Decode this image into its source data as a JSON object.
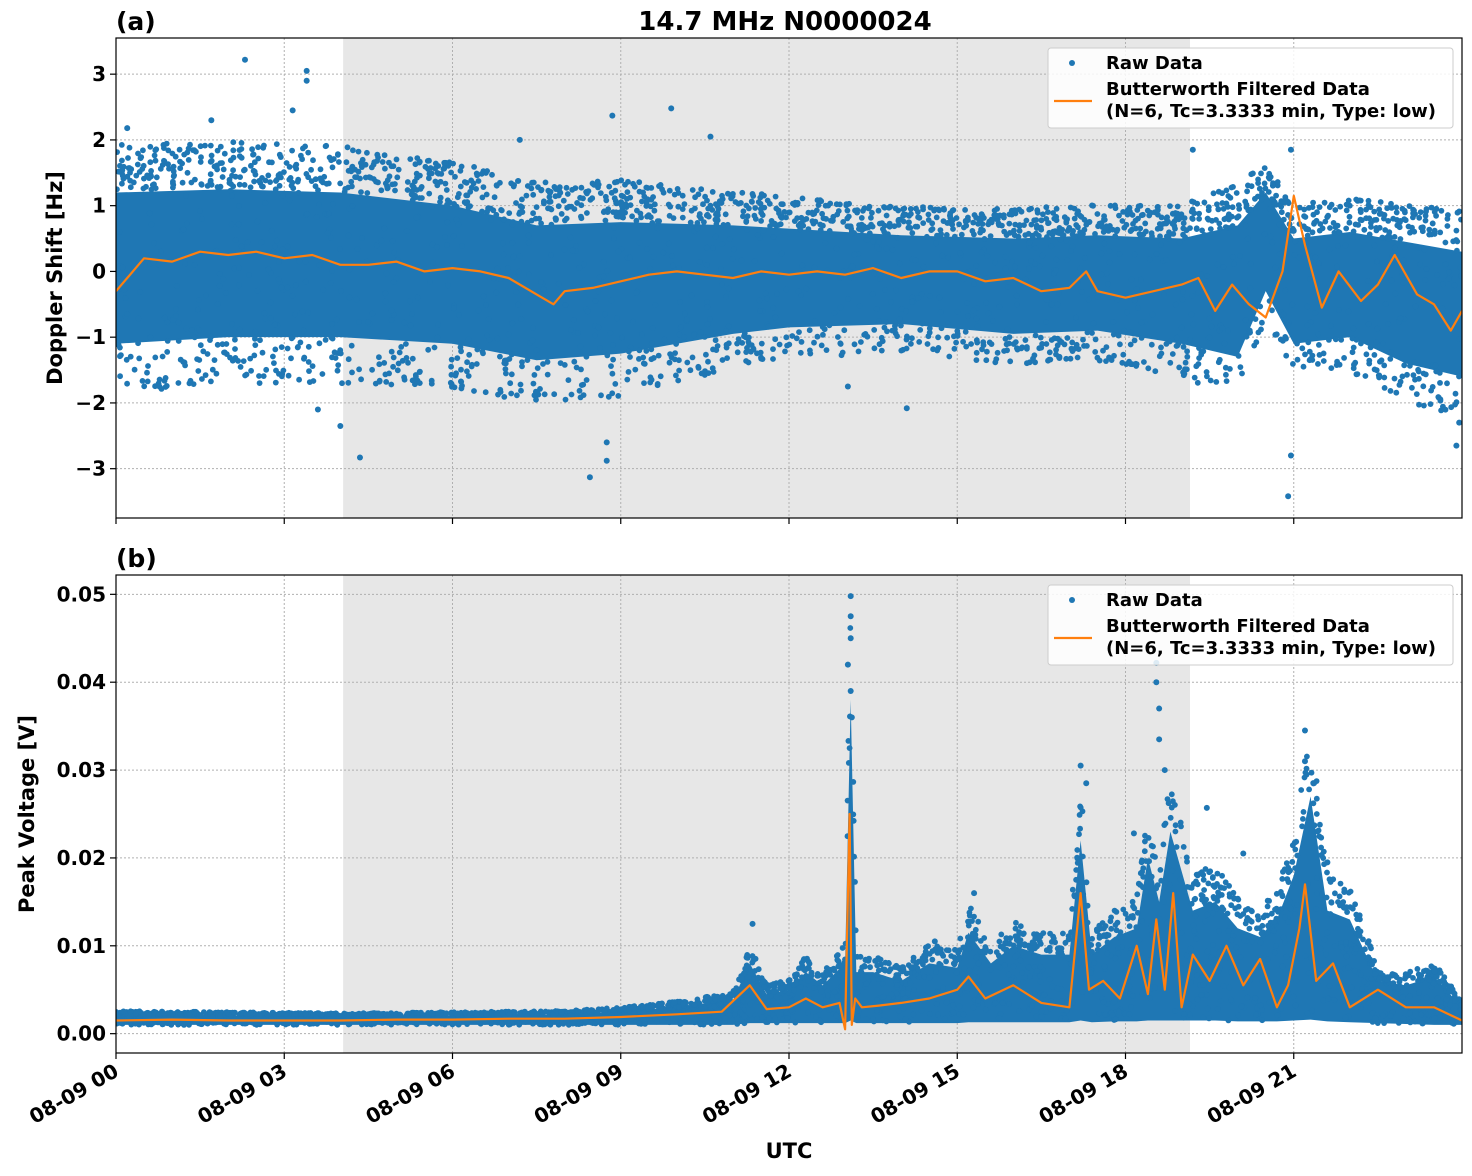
{
  "chart_data": [
    {
      "panel": "(a)",
      "type": "scatter",
      "title": "14.7 MHz N0000024",
      "xlabel": "",
      "ylabel": "Doppler Shift [Hz]",
      "x_unit": "hours since 08-09 00 UTC",
      "xlim": [
        0,
        24
      ],
      "ylim": [
        -3.75,
        3.55
      ],
      "yticks": [
        -3,
        -2,
        -1,
        0,
        1,
        2,
        3
      ],
      "ytick_labels": [
        "−3",
        "−2",
        "−1",
        "0",
        "1",
        "2",
        "3"
      ],
      "shaded_x_range": [
        4.05,
        19.15
      ],
      "grid": true,
      "legend_position": "top-right",
      "series": [
        {
          "name": "Raw Data",
          "kind": "scatter",
          "color": "#1f77b4",
          "band": {
            "x": [
              0,
              2,
              4,
              6,
              7.5,
              9,
              11,
              12,
              14,
              16,
              17.5,
              19,
              20,
              20.5,
              21,
              22,
              23,
              24
            ],
            "upper": [
              1.2,
              1.25,
              1.2,
              1.0,
              0.7,
              0.75,
              0.7,
              0.65,
              0.55,
              0.5,
              0.55,
              0.5,
              0.7,
              1.2,
              0.5,
              0.6,
              0.45,
              0.3
            ],
            "lower": [
              -1.1,
              -1.0,
              -1.0,
              -1.1,
              -1.35,
              -1.25,
              -0.95,
              -0.85,
              -0.8,
              -0.95,
              -0.9,
              -1.1,
              -1.3,
              -0.3,
              -1.1,
              -1.0,
              -1.4,
              -1.6
            ]
          },
          "outliers": [
            {
              "x": 2.3,
              "y": 3.22
            },
            {
              "x": 3.4,
              "y": 3.05
            },
            {
              "x": 3.4,
              "y": 2.9
            },
            {
              "x": 3.15,
              "y": 2.45
            },
            {
              "x": 9.9,
              "y": 2.48
            },
            {
              "x": 8.85,
              "y": 2.37
            },
            {
              "x": 10.6,
              "y": 2.05
            },
            {
              "x": 4.35,
              "y": -2.83
            },
            {
              "x": 8.45,
              "y": -3.13
            },
            {
              "x": 8.75,
              "y": -2.88
            },
            {
              "x": 8.75,
              "y": -2.6
            },
            {
              "x": 13.05,
              "y": -1.75
            },
            {
              "x": 14.1,
              "y": -2.08
            },
            {
              "x": 20.9,
              "y": -3.42
            },
            {
              "x": 20.95,
              "y": -2.8
            },
            {
              "x": 19.2,
              "y": 1.85
            },
            {
              "x": 20.95,
              "y": 1.85
            },
            {
              "x": 0.2,
              "y": 2.18
            },
            {
              "x": 1.7,
              "y": 2.3
            },
            {
              "x": 7.2,
              "y": 2.0
            },
            {
              "x": 23.9,
              "y": -2.65
            },
            {
              "x": 23.95,
              "y": -2.3
            },
            {
              "x": 4.0,
              "y": -2.35
            },
            {
              "x": 3.6,
              "y": -2.1
            }
          ]
        },
        {
          "name": "Butterworth Filtered Data\n(N=6, Tc=3.3333 min, Type: low)",
          "kind": "line",
          "color": "#ff7f0e",
          "x": [
            0,
            0.5,
            1,
            1.5,
            2,
            2.5,
            3,
            3.5,
            4,
            4.5,
            5,
            5.5,
            6,
            6.5,
            7,
            7.5,
            7.8,
            8,
            8.5,
            9,
            9.5,
            10,
            10.5,
            11,
            11.5,
            12,
            12.5,
            13,
            13.5,
            14,
            14.5,
            15,
            15.5,
            16,
            16.5,
            17,
            17.3,
            17.5,
            18,
            18.5,
            19,
            19.3,
            19.6,
            19.9,
            20.2,
            20.5,
            20.8,
            21.0,
            21.2,
            21.5,
            21.8,
            22.2,
            22.5,
            22.8,
            23.2,
            23.5,
            23.8,
            24
          ],
          "y": [
            -0.3,
            0.2,
            0.15,
            0.3,
            0.25,
            0.3,
            0.2,
            0.25,
            0.1,
            0.1,
            0.15,
            0.0,
            0.05,
            0.0,
            -0.1,
            -0.35,
            -0.5,
            -0.3,
            -0.25,
            -0.15,
            -0.05,
            0.0,
            -0.05,
            -0.1,
            0.0,
            -0.05,
            0.0,
            -0.05,
            0.05,
            -0.1,
            0.0,
            0.0,
            -0.15,
            -0.1,
            -0.3,
            -0.25,
            0.0,
            -0.3,
            -0.4,
            -0.3,
            -0.2,
            -0.1,
            -0.6,
            -0.2,
            -0.5,
            -0.7,
            0.0,
            1.15,
            0.4,
            -0.55,
            0.0,
            -0.45,
            -0.2,
            0.25,
            -0.35,
            -0.5,
            -0.9,
            -0.6
          ]
        }
      ]
    },
    {
      "panel": "(b)",
      "type": "scatter",
      "title": "",
      "xlabel": "UTC",
      "ylabel": "Peak Voltage [V]",
      "x_unit": "hours since 08-09 00 UTC",
      "xlim": [
        0,
        24
      ],
      "ylim": [
        -0.0022,
        0.0522
      ],
      "yticks": [
        0,
        0.01,
        0.02,
        0.03,
        0.04,
        0.05
      ],
      "ytick_labels": [
        "0.00",
        "0.01",
        "0.02",
        "0.03",
        "0.04",
        "0.05"
      ],
      "xticks": [
        0,
        3,
        6,
        9,
        12,
        15,
        18,
        21
      ],
      "xtick_labels": [
        "08-09 00",
        "08-09 03",
        "08-09 06",
        "08-09 09",
        "08-09 12",
        "08-09 15",
        "08-09 18",
        "08-09 21"
      ],
      "shaded_x_range": [
        4.05,
        19.15
      ],
      "grid": true,
      "legend_position": "top-right",
      "series": [
        {
          "name": "Raw Data",
          "kind": "scatter",
          "color": "#1f77b4",
          "band": {
            "x": [
              0,
              2,
              4,
              6,
              8,
              9,
              10,
              11,
              11.3,
              11.6,
              12,
              12.3,
              12.6,
              13.0,
              13.1,
              13.2,
              13.5,
              14,
              14.5,
              15.0,
              15.2,
              15.6,
              16.0,
              16.5,
              17.0,
              17.2,
              17.4,
              17.8,
              18.2,
              18.4,
              18.6,
              18.8,
              19.2,
              19.6,
              20.0,
              20.4,
              20.7,
              21.0,
              21.3,
              21.6,
              22.0,
              22.5,
              23.0,
              23.5,
              24
            ],
            "upper": [
              0.0022,
              0.0021,
              0.002,
              0.0021,
              0.0022,
              0.0025,
              0.003,
              0.0038,
              0.008,
              0.0045,
              0.005,
              0.007,
              0.0055,
              0.008,
              0.038,
              0.007,
              0.007,
              0.006,
              0.008,
              0.0075,
              0.0115,
              0.008,
              0.01,
              0.009,
              0.009,
              0.022,
              0.009,
              0.011,
              0.012,
              0.02,
              0.015,
              0.023,
              0.014,
              0.015,
              0.012,
              0.011,
              0.013,
              0.018,
              0.027,
              0.014,
              0.013,
              0.006,
              0.0055,
              0.0065,
              0.003
            ],
            "lower": [
              0.001,
              0.001,
              0.001,
              0.001,
              0.001,
              0.001,
              0.001,
              0.001,
              0.0012,
              0.0012,
              0.0012,
              0.0012,
              0.0012,
              0.0012,
              0.0015,
              0.0012,
              0.0012,
              0.0012,
              0.0012,
              0.0012,
              0.0013,
              0.0013,
              0.0013,
              0.0013,
              0.0013,
              0.0015,
              0.0013,
              0.0014,
              0.0014,
              0.0015,
              0.0015,
              0.0015,
              0.0015,
              0.0015,
              0.0014,
              0.0014,
              0.0014,
              0.0015,
              0.0016,
              0.0014,
              0.0013,
              0.0012,
              0.0011,
              0.001,
              0.001
            ]
          },
          "outliers": [
            {
              "x": 13.1,
              "y": 0.0498
            },
            {
              "x": 13.1,
              "y": 0.0475
            },
            {
              "x": 13.1,
              "y": 0.045
            },
            {
              "x": 13.05,
              "y": 0.042
            },
            {
              "x": 13.1,
              "y": 0.039
            },
            {
              "x": 13.12,
              "y": 0.036
            },
            {
              "x": 18.55,
              "y": 0.0422
            },
            {
              "x": 18.55,
              "y": 0.04
            },
            {
              "x": 18.6,
              "y": 0.037
            },
            {
              "x": 18.6,
              "y": 0.0335
            },
            {
              "x": 18.7,
              "y": 0.03
            },
            {
              "x": 21.2,
              "y": 0.0345
            },
            {
              "x": 21.2,
              "y": 0.031
            },
            {
              "x": 17.2,
              "y": 0.0305
            },
            {
              "x": 17.3,
              "y": 0.0285
            },
            {
              "x": 18.15,
              "y": 0.0228
            },
            {
              "x": 19.45,
              "y": 0.0257
            },
            {
              "x": 20.1,
              "y": 0.0205
            },
            {
              "x": 21.6,
              "y": 0.0195
            },
            {
              "x": 11.35,
              "y": 0.0125
            },
            {
              "x": 15.3,
              "y": 0.016
            },
            {
              "x": 14.6,
              "y": 0.0105
            }
          ]
        },
        {
          "name": "Butterworth Filtered Data\n(N=6, Tc=3.3333 min, Type: low)",
          "kind": "line",
          "color": "#ff7f0e",
          "x": [
            0,
            1,
            2,
            3,
            4,
            5,
            6,
            7,
            8,
            9,
            10,
            10.8,
            11.3,
            11.6,
            12,
            12.3,
            12.6,
            12.9,
            13.0,
            13.08,
            13.12,
            13.18,
            13.3,
            13.6,
            14,
            14.5,
            15.0,
            15.2,
            15.5,
            16.0,
            16.5,
            17.0,
            17.2,
            17.35,
            17.6,
            17.9,
            18.2,
            18.4,
            18.55,
            18.7,
            18.85,
            19.0,
            19.2,
            19.5,
            19.8,
            20.1,
            20.4,
            20.7,
            20.9,
            21.1,
            21.2,
            21.4,
            21.7,
            22.0,
            22.5,
            23.0,
            23.5,
            24
          ],
          "y": [
            0.0015,
            0.0016,
            0.0015,
            0.0015,
            0.0015,
            0.0016,
            0.0016,
            0.0017,
            0.0017,
            0.0019,
            0.0022,
            0.0025,
            0.0055,
            0.0028,
            0.003,
            0.004,
            0.003,
            0.0035,
            0.0005,
            0.025,
            0.001,
            0.004,
            0.003,
            0.0032,
            0.0035,
            0.004,
            0.005,
            0.0065,
            0.004,
            0.0055,
            0.0035,
            0.003,
            0.016,
            0.005,
            0.006,
            0.004,
            0.01,
            0.0045,
            0.013,
            0.005,
            0.016,
            0.003,
            0.009,
            0.006,
            0.01,
            0.0055,
            0.0085,
            0.003,
            0.0055,
            0.012,
            0.017,
            0.006,
            0.008,
            0.003,
            0.005,
            0.003,
            0.003,
            0.0015
          ]
        }
      ]
    }
  ]
}
